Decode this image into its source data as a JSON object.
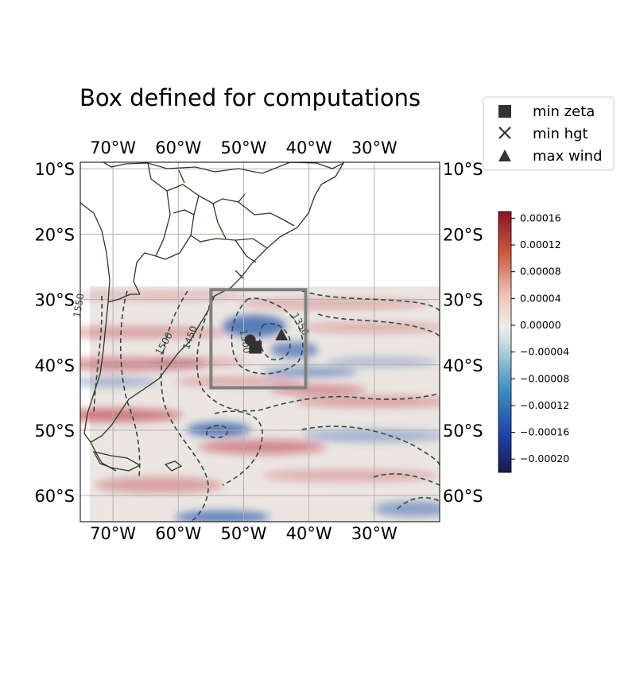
{
  "title": "Box defined for computations",
  "legend": {
    "placement": "top-right",
    "items": [
      {
        "label": "min zeta",
        "marker": "square"
      },
      {
        "label": "min hgt",
        "marker": "x"
      },
      {
        "label": "max wind",
        "marker": "triangle"
      }
    ]
  },
  "map": {
    "lon_range": [
      -75,
      -20
    ],
    "lat_range": [
      -64,
      -9
    ],
    "lon_ticks": [
      {
        "value": -70,
        "label": "70°W"
      },
      {
        "value": -60,
        "label": "60°W"
      },
      {
        "value": -50,
        "label": "50°W"
      },
      {
        "value": -40,
        "label": "40°W"
      },
      {
        "value": -30,
        "label": "30°W"
      }
    ],
    "lat_ticks": [
      {
        "value": -10,
        "label": "10°S"
      },
      {
        "value": -20,
        "label": "20°S"
      },
      {
        "value": -30,
        "label": "30°S"
      },
      {
        "value": -40,
        "label": "40°S"
      },
      {
        "value": -50,
        "label": "50°S"
      },
      {
        "value": -60,
        "label": "60°S"
      }
    ],
    "grid": true,
    "field_lat_range": [
      -64,
      -28
    ],
    "box": {
      "lon": [
        -55,
        -40.5
      ],
      "lat": [
        -43.5,
        -28.5
      ]
    },
    "contour_labels": [
      {
        "text": "1550",
        "lon": -75,
        "lat": -31
      },
      {
        "text": "1500",
        "lon": -62,
        "lat": -37
      },
      {
        "text": "1450",
        "lon": -58,
        "lat": -36
      },
      {
        "text": "1300",
        "lon": -50.5,
        "lat": -36.5
      },
      {
        "text": "1350",
        "lon": -42,
        "lat": -34
      }
    ],
    "markers": {
      "min_zeta": {
        "lon": -48.2,
        "lat": -37.3
      },
      "min_hgt": {
        "lon": -49,
        "lat": -36.2
      },
      "max_wind": {
        "lon": -44.2,
        "lat": -35.4
      }
    }
  },
  "colorbar": {
    "range": [
      -0.00022,
      0.00017
    ],
    "ticks": [
      "0.00016",
      "0.00012",
      "0.00008",
      "0.00004",
      "0.00000",
      "−0.00004",
      "−0.00008",
      "−0.00012",
      "−0.00016",
      "−0.00020"
    ],
    "tick_values": [
      0.00016,
      0.00012,
      8e-05,
      4e-05,
      0,
      -4e-05,
      -8e-05,
      -0.00012,
      -0.00016,
      -0.0002
    ]
  },
  "colors": {
    "positive": "#b2182b",
    "negative": "#1b4fa8",
    "contour": "#2f4a3f",
    "box": "#808080",
    "coast": "#2a3a22"
  }
}
